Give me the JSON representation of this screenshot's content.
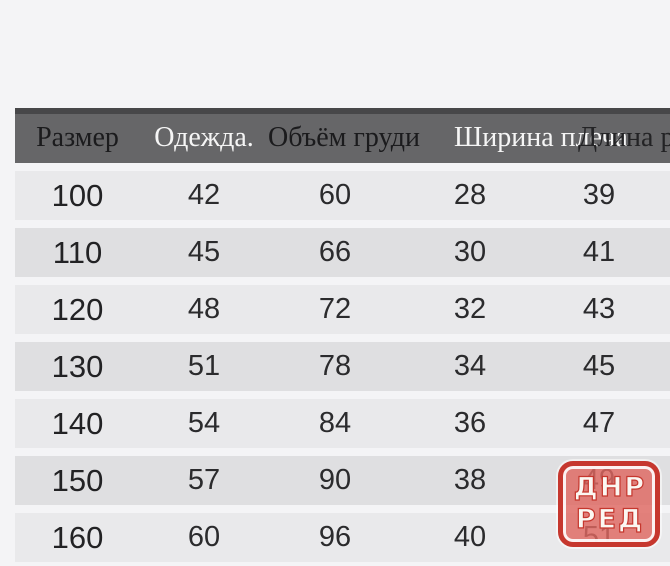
{
  "page": {
    "background_color": "#f4f4f6"
  },
  "size_chart": {
    "header": {
      "background_color": "#666668",
      "top_border_color": "#474749",
      "columns": [
        {
          "label": "Размер",
          "text_color": "#1b1b1d"
        },
        {
          "label": "Одежда.",
          "text_color": "#f5f5f5"
        },
        {
          "label": "Объём груди",
          "text_color": "#1b1b1d"
        },
        {
          "label": "Ширина плеча",
          "text_color": "#f5f5f5"
        },
        {
          "label": "Длина рукава",
          "text_color": "#232325"
        }
      ]
    },
    "rows": [
      [
        "100",
        "42",
        "60",
        "28",
        "39"
      ],
      [
        "110",
        "45",
        "66",
        "30",
        "41"
      ],
      [
        "120",
        "48",
        "72",
        "32",
        "43"
      ],
      [
        "130",
        "51",
        "78",
        "34",
        "45"
      ],
      [
        "140",
        "54",
        "84",
        "36",
        "47"
      ],
      [
        "150",
        "57",
        "90",
        "38",
        "49"
      ],
      [
        "160",
        "60",
        "96",
        "40",
        "51"
      ]
    ],
    "row_color_light": "#e9e9eb",
    "row_color_dark": "#dfdfe1",
    "cell_text_color": "#2b2b2d"
  },
  "watermark": {
    "line1": "ДНР",
    "line2": "РЕД",
    "border_color": "#c6372e",
    "fill_color": "rgba(223,104,96,0.82)",
    "text_color": "#fbf7f2"
  },
  "chart_data": {
    "type": "table",
    "title": "",
    "columns": [
      "Размер",
      "Одежда.",
      "Объём груди",
      "Ширина плеча",
      "Длина рукава"
    ],
    "rows": [
      [
        100,
        42,
        60,
        28,
        39
      ],
      [
        110,
        45,
        66,
        30,
        41
      ],
      [
        120,
        48,
        72,
        32,
        43
      ],
      [
        130,
        51,
        78,
        34,
        45
      ],
      [
        140,
        54,
        84,
        36,
        47
      ],
      [
        150,
        57,
        90,
        38,
        49
      ],
      [
        160,
        60,
        96,
        40,
        51
      ]
    ]
  }
}
